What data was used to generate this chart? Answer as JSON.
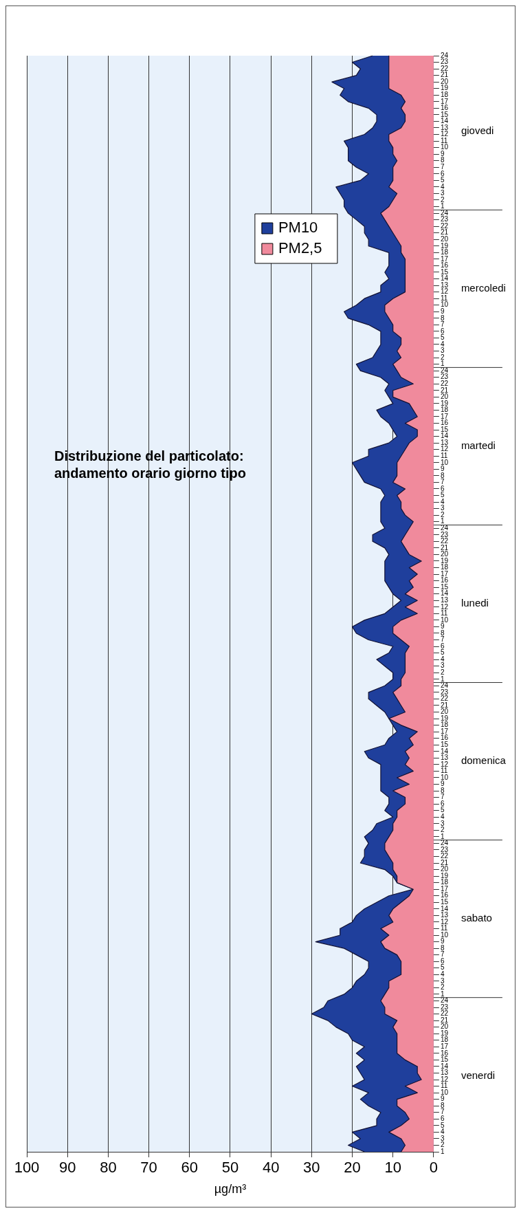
{
  "chart_data": {
    "type": "area",
    "orientation": "horizontal",
    "title": "Distribuzione del particolato:\nandamento orario giorno tipo",
    "xlabel": "µg/m³",
    "categories": [
      "24",
      "23",
      "22",
      "21",
      "20",
      "19",
      "18",
      "17",
      "16",
      "15",
      "14",
      "13",
      "12",
      "11",
      "10",
      "9",
      "8",
      "7",
      "6",
      "5",
      "4",
      "3",
      "2",
      "1",
      "24",
      "23",
      "22",
      "21",
      "20",
      "19",
      "18",
      "17",
      "16",
      "15",
      "14",
      "13",
      "12",
      "11",
      "10",
      "9",
      "8",
      "7",
      "6",
      "5",
      "4",
      "3",
      "2",
      "1",
      "24",
      "23",
      "22",
      "21",
      "20",
      "19",
      "18",
      "17",
      "16",
      "15",
      "14",
      "13",
      "12",
      "11",
      "10",
      "9",
      "8",
      "7",
      "6",
      "5",
      "4",
      "3",
      "2",
      "1",
      "24",
      "23",
      "22",
      "21",
      "20",
      "19",
      "18",
      "17",
      "16",
      "15",
      "14",
      "13",
      "12",
      "11",
      "10",
      "9",
      "8",
      "7",
      "6",
      "5",
      "4",
      "3",
      "2",
      "1",
      "24",
      "23",
      "22",
      "21",
      "20",
      "19",
      "18",
      "17",
      "16",
      "15",
      "14",
      "13",
      "12",
      "11",
      "10",
      "9",
      "8",
      "7",
      "6",
      "5",
      "4",
      "3",
      "2",
      "1",
      "24",
      "23",
      "22",
      "21",
      "20",
      "19",
      "18",
      "17",
      "16",
      "15",
      "14",
      "13",
      "12",
      "11",
      "10",
      "9",
      "8",
      "7",
      "6",
      "5",
      "4",
      "3",
      "2",
      "1",
      "24",
      "23",
      "22",
      "21",
      "20",
      "19",
      "18",
      "17",
      "16",
      "15",
      "14",
      "13",
      "12",
      "11",
      "10",
      "9",
      "8",
      "7",
      "6",
      "5",
      "4",
      "3",
      "2",
      "1"
    ],
    "series": [
      {
        "name": "PM10",
        "color": "#1f3f9c",
        "values": [
          15,
          20,
          18,
          19,
          25,
          22,
          23,
          21,
          16,
          14,
          14,
          15,
          17,
          22,
          21,
          21,
          21,
          19,
          16,
          18,
          24,
          23,
          22,
          22,
          21,
          19,
          17,
          17,
          16,
          16,
          11,
          11,
          11,
          12,
          11,
          13,
          13,
          17,
          19,
          22,
          21,
          16,
          13,
          13,
          13,
          14,
          15,
          19,
          18,
          13,
          11,
          12,
          11,
          10,
          14,
          13,
          11,
          10,
          9,
          11,
          16,
          16,
          20,
          19,
          18,
          17,
          13,
          12,
          13,
          13,
          13,
          13,
          12,
          15,
          15,
          12,
          11,
          12,
          12,
          12,
          12,
          11,
          10,
          8,
          10,
          12,
          17,
          20,
          19,
          16,
          10,
          11,
          14,
          12,
          10,
          10,
          12,
          16,
          16,
          14,
          12,
          11,
          10,
          9,
          11,
          12,
          17,
          16,
          13,
          13,
          13,
          13,
          13,
          11,
          11,
          12,
          10,
          14,
          15,
          17,
          16,
          17,
          17,
          18,
          12,
          10,
          9,
          5,
          11,
          14,
          17,
          19,
          20,
          23,
          23,
          29,
          22,
          19,
          16,
          16,
          17,
          19,
          20,
          22,
          26,
          27,
          30,
          26,
          24,
          21,
          20,
          17,
          19,
          17,
          19,
          18,
          17,
          20,
          16,
          18,
          16,
          13,
          14,
          14,
          20,
          18,
          21,
          17
        ]
      },
      {
        "name": "PM2,5",
        "color": "#f08a9c",
        "values": [
          11,
          11,
          11,
          11,
          11,
          11,
          8,
          7,
          8,
          7,
          7,
          8,
          11,
          11,
          10,
          10,
          9,
          10,
          10,
          10,
          11,
          9,
          10,
          11,
          13,
          12,
          11,
          10,
          9,
          8,
          8,
          7,
          7,
          7,
          7,
          7,
          7,
          10,
          12,
          12,
          11,
          10,
          10,
          8,
          8,
          9,
          8,
          10,
          9,
          8,
          5,
          10,
          10,
          6,
          5,
          4,
          7,
          4,
          4,
          6,
          7,
          8,
          9,
          9,
          9,
          10,
          7,
          9,
          8,
          8,
          7,
          5,
          6,
          7,
          8,
          7,
          6,
          3,
          6,
          4,
          6,
          5,
          7,
          4,
          7,
          4,
          8,
          10,
          10,
          8,
          6,
          7,
          7,
          7,
          7,
          8,
          8,
          10,
          9,
          8,
          7,
          11,
          8,
          4,
          6,
          5,
          7,
          6,
          7,
          5,
          9,
          6,
          10,
          7,
          7,
          9,
          9,
          10,
          10,
          11,
          12,
          12,
          11,
          10,
          10,
          9,
          9,
          5,
          6,
          8,
          10,
          11,
          10,
          13,
          11,
          13,
          12,
          9,
          8,
          8,
          8,
          11,
          11,
          12,
          13,
          12,
          12,
          9,
          10,
          9,
          9,
          9,
          9,
          7,
          4,
          4,
          3,
          7,
          4,
          9,
          9,
          7,
          6,
          8,
          11,
          8,
          7,
          8
        ]
      }
    ],
    "annotations": [
      "giovedi",
      "mercoledi",
      "martedi",
      "lunedi",
      "domenica",
      "sabato",
      "venerdi"
    ],
    "xlim": [
      100,
      0
    ],
    "xticks": [
      0,
      10,
      20,
      30,
      40,
      50,
      60,
      70,
      80,
      90,
      100
    ],
    "grid": "x",
    "legend": "top right"
  }
}
